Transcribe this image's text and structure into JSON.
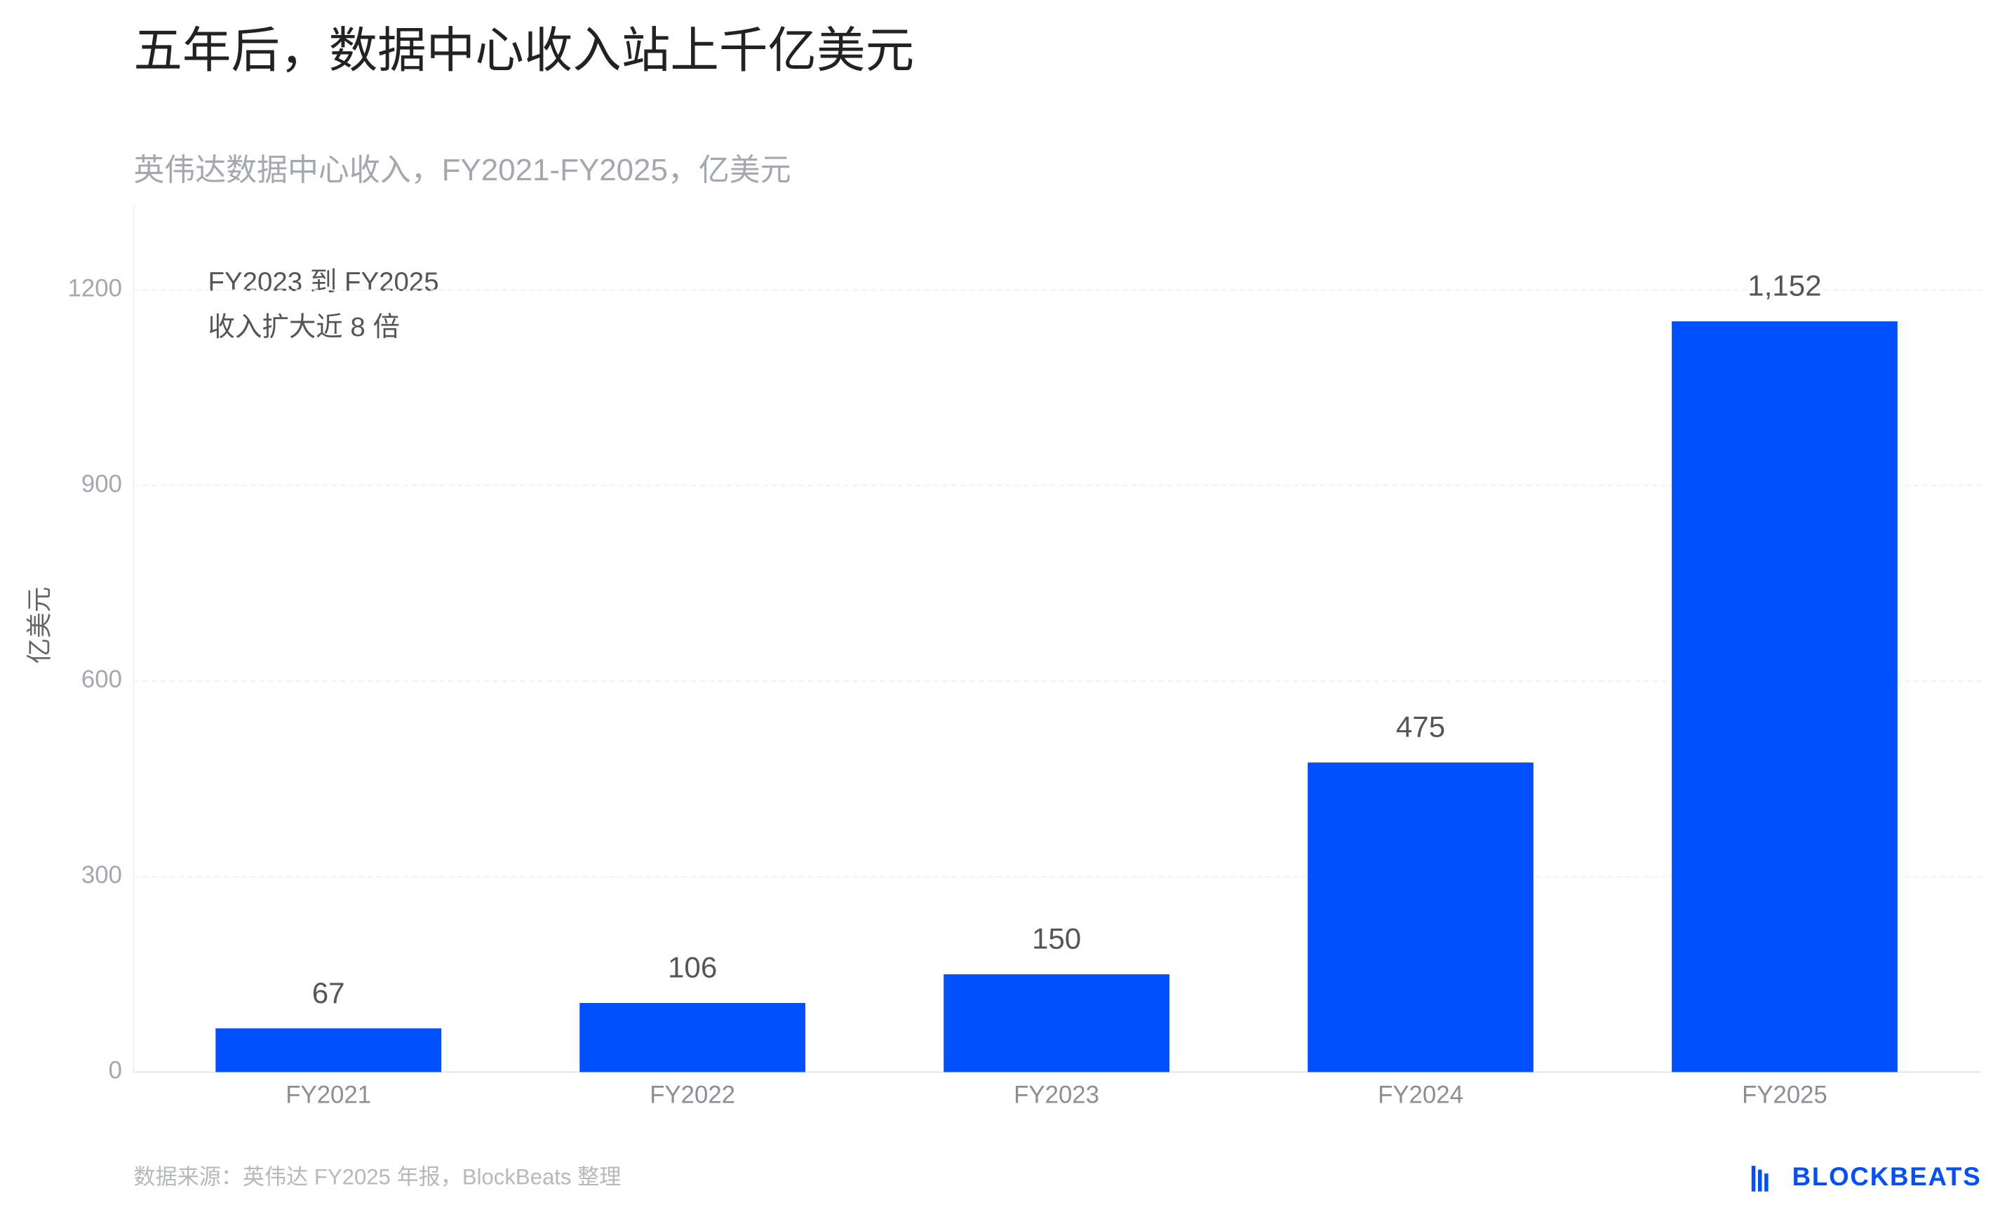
{
  "chart_data": {
    "type": "bar",
    "title": "五年后，数据中心收入站上千亿美元",
    "subtitle": "英伟达数据中心收入，FY2021-FY2025，亿美元",
    "y_label": "亿美元",
    "annotation": [
      "FY2023 到 FY2025",
      "收入扩大近 8 倍"
    ],
    "source": "数据来源：英伟达 FY2025 年报，BlockBeats 整理",
    "logo": "BLOCKBEATS",
    "categories": [
      "FY2021",
      "FY2022",
      "FY2023",
      "FY2024",
      "FY2025"
    ],
    "values": [
      67,
      106,
      150,
      475,
      1152
    ],
    "value_labels": [
      "67",
      "106",
      "150",
      "475",
      "1,152"
    ],
    "color": "#0050ff",
    "ylim": [
      0,
      1320
    ],
    "yticks": [
      0,
      300,
      600,
      900,
      1200
    ],
    "grid": true
  }
}
